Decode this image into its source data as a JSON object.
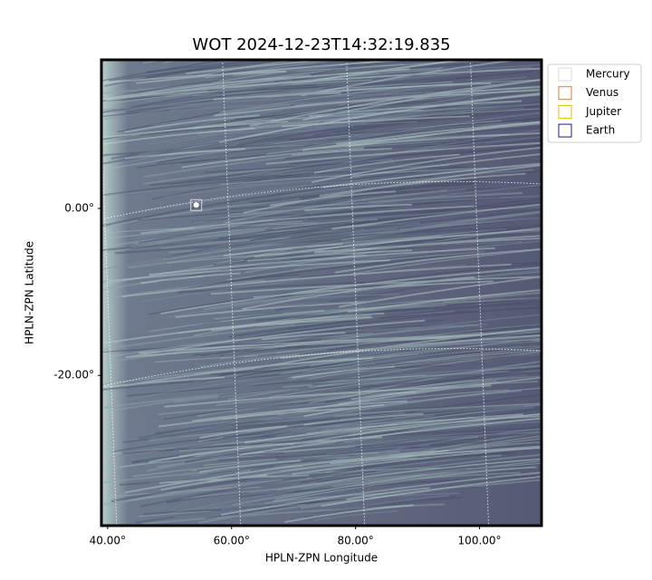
{
  "chart_data": {
    "type": "image",
    "title": "WOT 2024-12-23T14:32:19.835",
    "x_label": "HPLN-ZPN Longitude",
    "y_label": "HPLN-ZPN Latitude",
    "xlim": [
      39,
      110
    ],
    "ylim": [
      -38,
      17.8
    ],
    "xticks": [
      {
        "value": 40,
        "label": "40.00°"
      },
      {
        "value": 60,
        "label": "60.00°"
      },
      {
        "value": 80,
        "label": "80.00°"
      },
      {
        "value": 100,
        "label": "100.00°"
      }
    ],
    "yticks": [
      {
        "value": 0,
        "label": "0.00°"
      },
      {
        "value": -20,
        "label": "-20.00°"
      }
    ],
    "grid": true,
    "legend": "upper right outside",
    "series": [
      {
        "name": "Mercury",
        "color": "#d9d9d9",
        "x": [
          54.3
        ],
        "values": [
          0.4
        ]
      },
      {
        "name": "Venus",
        "color": "#e07b39",
        "x": [],
        "values": []
      },
      {
        "name": "Jupiter",
        "color": "#e6b422",
        "x": [],
        "values": []
      },
      {
        "name": "Earth",
        "color": "#1a1a80",
        "x": [],
        "values": []
      }
    ]
  }
}
